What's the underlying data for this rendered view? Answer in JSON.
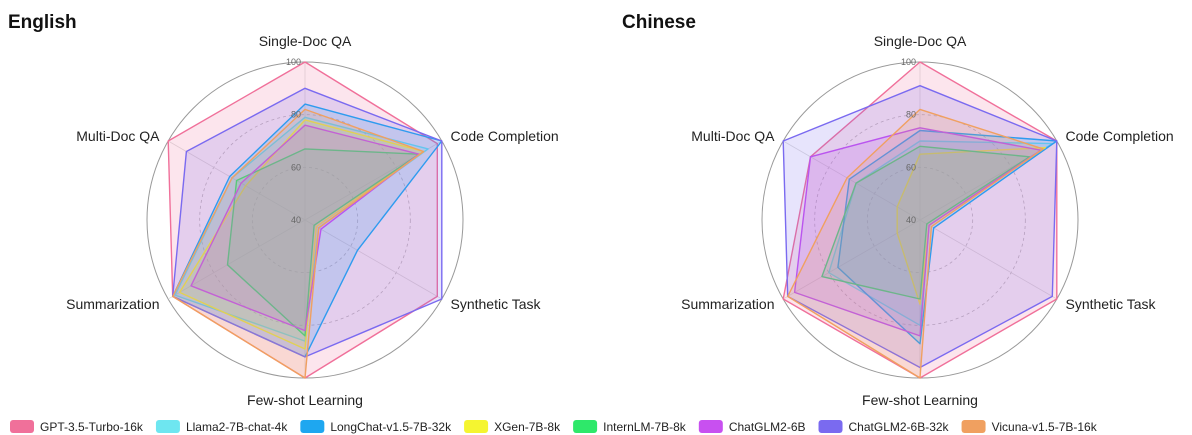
{
  "chart_data": [
    {
      "type": "radar",
      "title": "English",
      "categories": [
        "Single-Doc QA",
        "Code Completion",
        "Synthetic Task",
        "Few-shot Learning",
        "Summarization",
        "Multi-Doc QA"
      ],
      "rlim": [
        40,
        100
      ],
      "rticks": [
        40,
        60,
        80,
        100
      ],
      "series": [
        {
          "name": "GPT-3.5-Turbo-16k",
          "color": "#f0709a",
          "values": [
            100,
            98,
            98,
            100,
            98,
            100
          ]
        },
        {
          "name": "Llama2-7B-chat-4k",
          "color": "#6ee6f0",
          "values": [
            79,
            94,
            46,
            86,
            97,
            72
          ]
        },
        {
          "name": "LongChat-v1.5-7B-32k",
          "color": "#1ea7f0",
          "values": [
            84,
            100,
            63,
            92,
            98,
            73
          ]
        },
        {
          "name": "XGen-7B-8k",
          "color": "#f5f530",
          "values": [
            78,
            92,
            45,
            89,
            95,
            66
          ]
        },
        {
          "name": "InternLM-7B-8k",
          "color": "#2ee86a",
          "values": [
            67,
            90,
            44,
            84,
            74,
            70
          ]
        },
        {
          "name": "ChatGLM2-6B",
          "color": "#c850f0",
          "values": [
            76,
            90,
            47,
            82,
            90,
            68
          ]
        },
        {
          "name": "ChatGLM2-6B-32k",
          "color": "#7a6af0",
          "values": [
            90,
            100,
            100,
            92,
            98,
            92
          ]
        },
        {
          "name": "Vicuna-v1.5-7B-16k",
          "color": "#f0a060",
          "values": [
            82,
            92,
            46,
            100,
            98,
            72
          ]
        }
      ]
    },
    {
      "type": "radar",
      "title": "Chinese",
      "categories": [
        "Single-Doc QA",
        "Code Completion",
        "Synthetic Task",
        "Few-shot Learning",
        "Summarization",
        "Multi-Doc QA"
      ],
      "rlim": [
        40,
        100
      ],
      "rticks": [
        40,
        60,
        80,
        100
      ],
      "series": [
        {
          "name": "GPT-3.5-Turbo-16k",
          "color": "#f0709a",
          "values": [
            100,
            100,
            100,
            100,
            100,
            88
          ]
        },
        {
          "name": "Llama2-7B-chat-4k",
          "color": "#6ee6f0",
          "values": [
            70,
            98,
            44,
            80,
            80,
            68
          ]
        },
        {
          "name": "LongChat-v1.5-7B-32k",
          "color": "#1ea7f0",
          "values": [
            74,
            100,
            46,
            87,
            76,
            71
          ]
        },
        {
          "name": "XGen-7B-8k",
          "color": "#f5f530",
          "values": [
            65,
            95,
            44,
            72,
            50,
            50
          ]
        },
        {
          "name": "InternLM-7B-8k",
          "color": "#2ee86a",
          "values": [
            68,
            88,
            43,
            70,
            83,
            68
          ]
        },
        {
          "name": "ChatGLM2-6B",
          "color": "#c850f0",
          "values": [
            75,
            93,
            44,
            84,
            95,
            88
          ]
        },
        {
          "name": "ChatGLM2-6B-32k",
          "color": "#7a6af0",
          "values": [
            91,
            100,
            98,
            96,
            98,
            100
          ]
        },
        {
          "name": "Vicuna-v1.5-7B-16k",
          "color": "#f0a060",
          "values": [
            82,
            94,
            45,
            100,
            98,
            72
          ]
        }
      ]
    }
  ]
}
